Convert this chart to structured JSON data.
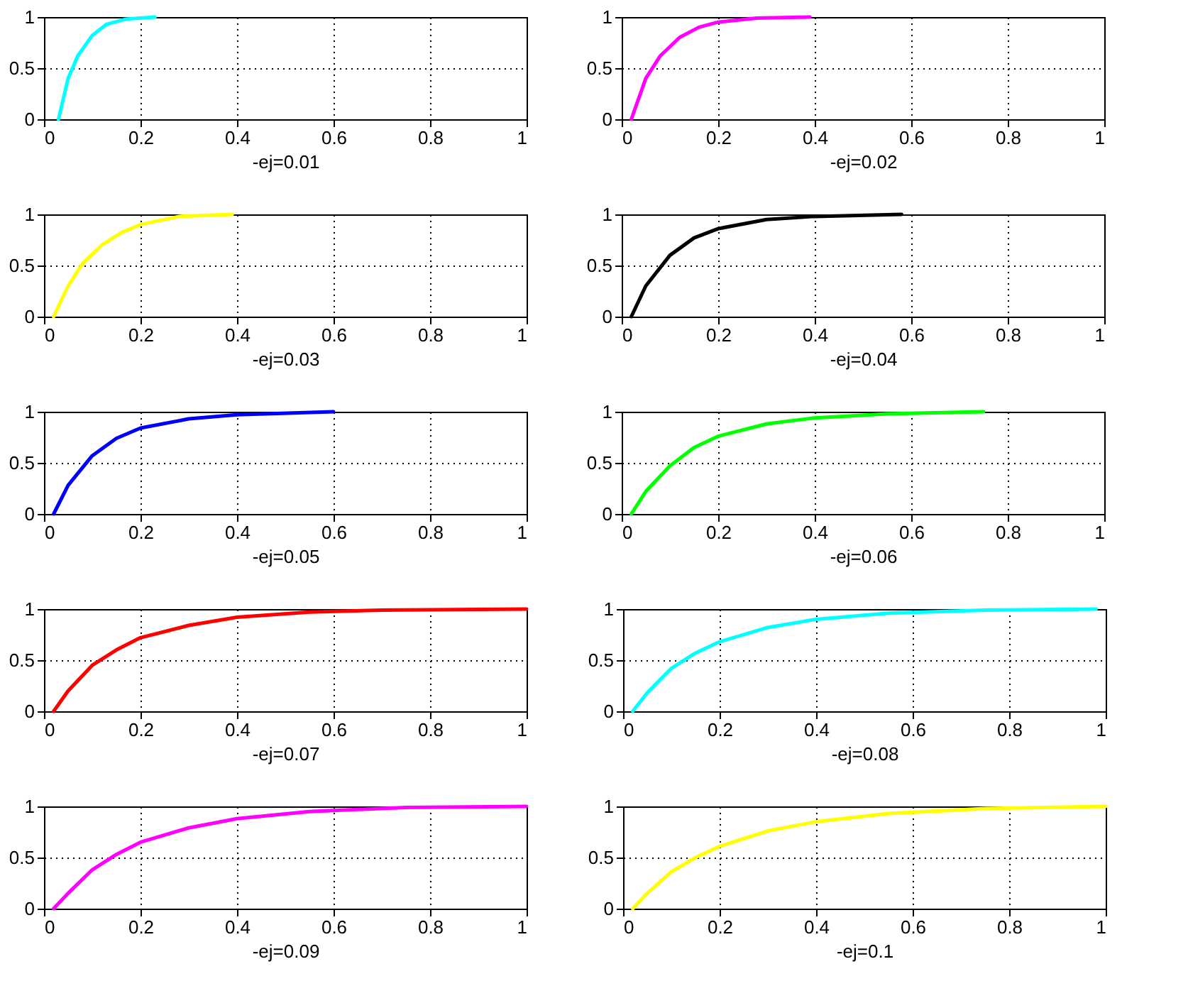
{
  "chart_data": [
    {
      "type": "line",
      "xlabel": "-ej=0.01",
      "xlim": [
        0,
        1
      ],
      "xticks": [
        0,
        0.2,
        0.4,
        0.6,
        0.8,
        1
      ],
      "ylim": [
        0,
        1
      ],
      "yticks": [
        0,
        0.5,
        1
      ],
      "grid": true,
      "series": [
        {
          "color": "#00ffff",
          "x": [
            0.03,
            0.05,
            0.07,
            0.1,
            0.13,
            0.17,
            0.23
          ],
          "values": [
            0,
            0.4,
            0.62,
            0.82,
            0.93,
            0.98,
            1
          ]
        }
      ]
    },
    {
      "type": "line",
      "xlabel": "-ej=0.02",
      "xlim": [
        0,
        1
      ],
      "xticks": [
        0,
        0.2,
        0.4,
        0.6,
        0.8,
        1
      ],
      "ylim": [
        0,
        1
      ],
      "yticks": [
        0,
        0.5,
        1
      ],
      "grid": true,
      "series": [
        {
          "color": "#ff00ff",
          "x": [
            0.02,
            0.05,
            0.08,
            0.12,
            0.16,
            0.2,
            0.28,
            0.39
          ],
          "values": [
            0,
            0.4,
            0.62,
            0.8,
            0.9,
            0.95,
            0.99,
            1
          ]
        }
      ]
    },
    {
      "type": "line",
      "xlabel": "-ej=0.03",
      "xlim": [
        0,
        1
      ],
      "xticks": [
        0,
        0.2,
        0.4,
        0.6,
        0.8,
        1
      ],
      "ylim": [
        0,
        1
      ],
      "yticks": [
        0,
        0.5,
        1
      ],
      "grid": true,
      "series": [
        {
          "color": "#ffff00",
          "x": [
            0.02,
            0.05,
            0.08,
            0.12,
            0.16,
            0.2,
            0.28,
            0.39
          ],
          "values": [
            0,
            0.3,
            0.52,
            0.7,
            0.82,
            0.9,
            0.98,
            1
          ]
        }
      ]
    },
    {
      "type": "line",
      "xlabel": "-ej=0.04",
      "xlim": [
        0,
        1
      ],
      "xticks": [
        0,
        0.2,
        0.4,
        0.6,
        0.8,
        1
      ],
      "ylim": [
        0,
        1
      ],
      "yticks": [
        0,
        0.5,
        1
      ],
      "grid": true,
      "series": [
        {
          "color": "#000000",
          "x": [
            0.02,
            0.05,
            0.1,
            0.15,
            0.2,
            0.3,
            0.4,
            0.58
          ],
          "values": [
            0,
            0.3,
            0.6,
            0.77,
            0.86,
            0.95,
            0.98,
            1
          ]
        }
      ]
    },
    {
      "type": "line",
      "xlabel": "-ej=0.05",
      "xlim": [
        0,
        1
      ],
      "xticks": [
        0,
        0.2,
        0.4,
        0.6,
        0.8,
        1
      ],
      "ylim": [
        0,
        1
      ],
      "yticks": [
        0,
        0.5,
        1
      ],
      "grid": true,
      "series": [
        {
          "color": "#0000ff",
          "x": [
            0.02,
            0.05,
            0.1,
            0.15,
            0.2,
            0.3,
            0.4,
            0.6
          ],
          "values": [
            0,
            0.28,
            0.57,
            0.74,
            0.84,
            0.93,
            0.97,
            1
          ]
        }
      ]
    },
    {
      "type": "line",
      "xlabel": "-ej=0.06",
      "xlim": [
        0,
        1
      ],
      "xticks": [
        0,
        0.2,
        0.4,
        0.6,
        0.8,
        1
      ],
      "ylim": [
        0,
        1
      ],
      "yticks": [
        0,
        0.5,
        1
      ],
      "grid": true,
      "series": [
        {
          "color": "#00ff00",
          "x": [
            0.02,
            0.05,
            0.1,
            0.15,
            0.2,
            0.3,
            0.4,
            0.55,
            0.75
          ],
          "values": [
            0,
            0.22,
            0.47,
            0.65,
            0.76,
            0.88,
            0.94,
            0.98,
            1
          ]
        }
      ]
    },
    {
      "type": "line",
      "xlabel": "-ej=0.07",
      "xlim": [
        0,
        1
      ],
      "xticks": [
        0,
        0.2,
        0.4,
        0.6,
        0.8,
        1
      ],
      "ylim": [
        0,
        1
      ],
      "yticks": [
        0,
        0.5,
        1
      ],
      "grid": true,
      "series": [
        {
          "color": "#ff0000",
          "x": [
            0.02,
            0.05,
            0.1,
            0.15,
            0.2,
            0.3,
            0.4,
            0.55,
            0.7,
            1
          ],
          "values": [
            0,
            0.2,
            0.45,
            0.6,
            0.72,
            0.84,
            0.92,
            0.97,
            0.99,
            1
          ]
        }
      ]
    },
    {
      "type": "line",
      "xlabel": "-ej=0.08",
      "xlim": [
        0,
        1
      ],
      "xticks": [
        0,
        0.2,
        0.4,
        0.6,
        0.8,
        1
      ],
      "ylim": [
        0,
        1
      ],
      "yticks": [
        0,
        0.5,
        1
      ],
      "grid": true,
      "series": [
        {
          "color": "#00ffff",
          "x": [
            0.02,
            0.05,
            0.1,
            0.15,
            0.2,
            0.3,
            0.4,
            0.55,
            0.75,
            0.98
          ],
          "values": [
            0,
            0.18,
            0.42,
            0.57,
            0.68,
            0.82,
            0.9,
            0.96,
            0.99,
            1
          ]
        }
      ]
    },
    {
      "type": "line",
      "xlabel": "-ej=0.09",
      "xlim": [
        0,
        1
      ],
      "xticks": [
        0,
        0.2,
        0.4,
        0.6,
        0.8,
        1
      ],
      "ylim": [
        0,
        1
      ],
      "yticks": [
        0,
        0.5,
        1
      ],
      "grid": true,
      "series": [
        {
          "color": "#ff00ff",
          "x": [
            0.02,
            0.05,
            0.1,
            0.15,
            0.2,
            0.3,
            0.4,
            0.55,
            0.75,
            1
          ],
          "values": [
            0,
            0.15,
            0.38,
            0.53,
            0.65,
            0.79,
            0.88,
            0.95,
            0.99,
            1
          ]
        }
      ]
    },
    {
      "type": "line",
      "xlabel": "-ej=0.1",
      "xlim": [
        0,
        1
      ],
      "xticks": [
        0,
        0.2,
        0.4,
        0.6,
        0.8,
        1
      ],
      "ylim": [
        0,
        1
      ],
      "yticks": [
        0,
        0.5,
        1
      ],
      "grid": true,
      "series": [
        {
          "color": "#ffff00",
          "x": [
            0.02,
            0.05,
            0.1,
            0.15,
            0.2,
            0.3,
            0.4,
            0.55,
            0.75,
            1
          ],
          "values": [
            0,
            0.15,
            0.36,
            0.5,
            0.61,
            0.76,
            0.85,
            0.93,
            0.98,
            1
          ]
        }
      ]
    }
  ]
}
